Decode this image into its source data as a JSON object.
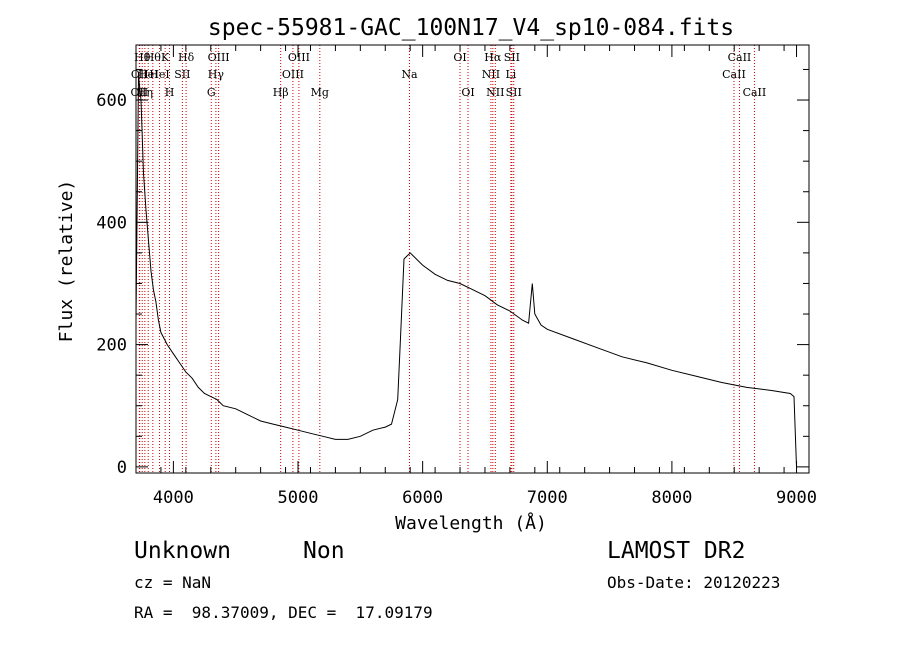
{
  "chart_data": {
    "type": "line",
    "title": "spec-55981-GAC_100N17_V4_sp10-084.fits",
    "xlabel": "Wavelength (Å)",
    "ylabel": "Flux (relative)",
    "xlim": [
      3700,
      9100
    ],
    "ylim": [
      -10,
      690
    ],
    "x_ticks": [
      4000,
      5000,
      6000,
      7000,
      8000,
      9000
    ],
    "y_ticks": [
      0,
      200,
      400,
      600
    ],
    "grid": false,
    "series_color": "#000000",
    "line_color": "#cc0000",
    "series": [
      {
        "x": [
          3700,
          3720,
          3740,
          3760,
          3780,
          3800,
          3820,
          3840,
          3860,
          3880,
          3900,
          3950,
          4000,
          4050,
          4100,
          4150,
          4200,
          4250,
          4300,
          4350,
          4400,
          4500,
          4600,
          4700,
          4800,
          4900,
          5000,
          5100,
          5200,
          5300,
          5400,
          5500,
          5600,
          5700,
          5750,
          5800,
          5820,
          5850,
          5900,
          6000,
          6100,
          6200,
          6300,
          6400,
          6500,
          6600,
          6700,
          6800,
          6850,
          6880,
          6900,
          6950,
          7000,
          7200,
          7400,
          7600,
          7800,
          8000,
          8200,
          8400,
          8600,
          8800,
          8950,
          8980,
          9000
        ],
        "y": [
          240,
          640,
          600,
          480,
          420,
          370,
          320,
          290,
          270,
          240,
          220,
          200,
          185,
          170,
          155,
          145,
          130,
          120,
          115,
          110,
          100,
          95,
          85,
          75,
          70,
          65,
          60,
          55,
          50,
          45,
          45,
          50,
          60,
          65,
          70,
          110,
          200,
          340,
          350,
          330,
          315,
          305,
          300,
          290,
          280,
          265,
          255,
          240,
          235,
          300,
          250,
          232,
          225,
          210,
          195,
          180,
          170,
          158,
          148,
          138,
          130,
          125,
          120,
          115,
          0
        ]
      }
    ],
    "lines": [
      {
        "wavelength": 3727,
        "label": "OII",
        "row": 2
      },
      {
        "wavelength": 3730,
        "label": "OII",
        "row": 1
      },
      {
        "wavelength": 3750,
        "label": "Hθ",
        "row": 0
      },
      {
        "wavelength": 3771,
        "label": "Hη",
        "row": 2
      },
      {
        "wavelength": 3798,
        "label": "HeI",
        "row": 1
      },
      {
        "wavelength": 3835,
        "label": "Hθ",
        "row": 0
      },
      {
        "wavelength": 3889,
        "label": "HeI",
        "row": 1
      },
      {
        "wavelength": 3934,
        "label": "K",
        "row": 0
      },
      {
        "wavelength": 3969,
        "label": "H",
        "row": 2
      },
      {
        "wavelength": 4072,
        "label": "SII",
        "row": 1
      },
      {
        "wavelength": 4102,
        "label": "Hδ",
        "row": 0
      },
      {
        "wavelength": 4304,
        "label": "G",
        "row": 2
      },
      {
        "wavelength": 4341,
        "label": "Hγ",
        "row": 1
      },
      {
        "wavelength": 4363,
        "label": "OIII",
        "row": 0
      },
      {
        "wavelength": 4861,
        "label": "Hβ",
        "row": 2
      },
      {
        "wavelength": 4959,
        "label": "OIII",
        "row": 1
      },
      {
        "wavelength": 5007,
        "label": "OIII",
        "row": 0
      },
      {
        "wavelength": 5175,
        "label": "Mg",
        "row": 2
      },
      {
        "wavelength": 5894,
        "label": "Na",
        "row": 1
      },
      {
        "wavelength": 6300,
        "label": "OI",
        "row": 0
      },
      {
        "wavelength": 6364,
        "label": "OI",
        "row": 2
      },
      {
        "wavelength": 6548,
        "label": "NII",
        "row": 1
      },
      {
        "wavelength": 6563,
        "label": "Hα",
        "row": 0
      },
      {
        "wavelength": 6583,
        "label": "NII",
        "row": 2
      },
      {
        "wavelength": 6708,
        "label": "Li",
        "row": 1
      },
      {
        "wavelength": 6716,
        "label": "SII",
        "row": 0
      },
      {
        "wavelength": 6731,
        "label": "SII",
        "row": 2
      },
      {
        "wavelength": 8498,
        "label": "CaII",
        "row": 1
      },
      {
        "wavelength": 8542,
        "label": "CaII",
        "row": 0
      },
      {
        "wavelength": 8662,
        "label": "CaII",
        "row": 2
      }
    ]
  },
  "footer": {
    "class_label": "Unknown",
    "subclass_label": "Non",
    "survey": "LAMOST DR2",
    "cz": "cz = NaN",
    "obs_date": "Obs-Date: 20120223",
    "coords": "RA =  98.37009, DEC =  17.09179"
  }
}
